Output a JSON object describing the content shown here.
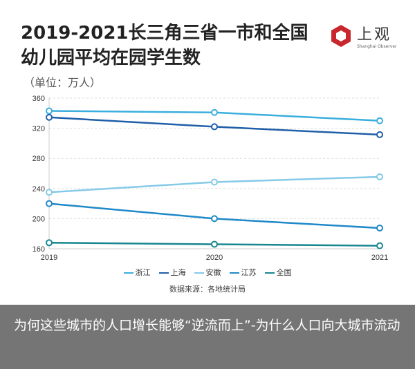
{
  "chart_data": {
    "type": "line",
    "title": "2019-2021长三角三省一市和全国幼儿园平均在园学生数",
    "unit": "（单位：万人）",
    "x": [
      "2019",
      "2020",
      "2021"
    ],
    "ylim": [
      160,
      360
    ],
    "yticks": [
      160,
      200,
      240,
      280,
      320,
      360
    ],
    "grid": true,
    "legend_position": "bottom",
    "series": [
      {
        "name": "浙江",
        "color": "#3aaedc",
        "values": [
          343,
          341,
          330
        ]
      },
      {
        "name": "上海",
        "color": "#1f5fa8",
        "values": [
          334.5,
          322,
          311.5
        ]
      },
      {
        "name": "安徽",
        "color": "#86c9e8",
        "values": [
          235,
          248.5,
          255.5
        ]
      },
      {
        "name": "江苏",
        "color": "#1e88c8",
        "values": [
          220,
          200,
          187.5
        ]
      },
      {
        "name": "全国",
        "color": "#17868f",
        "values": [
          168,
          166,
          164
        ]
      }
    ],
    "source": "数据来源：各地统计局"
  },
  "logo": {
    "cn": "上观",
    "en": "Shanghai Observer",
    "color": "#c8282d"
  },
  "overlay": {
    "headline": "为何这些城市的人口增长能够“逆流而上”-为什么人口向大城市流动"
  }
}
